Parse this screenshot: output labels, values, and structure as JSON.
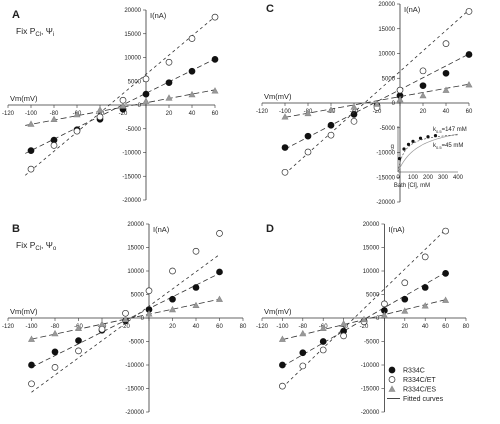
{
  "chart_data": [
    {
      "type": "scatter",
      "panel_label": "A",
      "subtitle": "Fix P",
      "subtitle_sub": "Cl",
      "subtitle_tail": ", Ψ",
      "subtitle_tail_sub": "i",
      "xlabel": "Vm(mV)",
      "ylabel": "I(nA)",
      "xlim": [
        -120,
        60
      ],
      "ylim": [
        -20000,
        20000
      ],
      "xticks": [
        "-120",
        "-100",
        "-80",
        "-60",
        "-40",
        "-20",
        "0",
        "20",
        "40",
        "60"
      ],
      "yticks": [
        "20000",
        "15000",
        "10000",
        "5000",
        "0",
        "-5000",
        "-10000",
        "-15000",
        "-20000"
      ],
      "series": [
        {
          "key": "R334C",
          "x": [
            -100,
            -80,
            -60,
            -40,
            -20,
            0,
            20,
            40,
            60
          ],
          "y": [
            -9600,
            -7400,
            -5200,
            -3000,
            -900,
            2300,
            4700,
            7100,
            9600
          ],
          "fit": {
            "x": [
              -105,
              60
            ],
            "y": [
              -10200,
              9700
            ]
          }
        },
        {
          "key": "R334C/ET",
          "x": [
            -100,
            -80,
            -60,
            -40,
            -20,
            0,
            20,
            40,
            60
          ],
          "y": [
            -13500,
            -8500,
            -5500,
            -2500,
            1000,
            5500,
            9000,
            14000,
            18500
          ],
          "fit": {
            "x": [
              -105,
              60
            ],
            "y": [
              -14800,
              18600
            ]
          }
        },
        {
          "key": "R334C/ES",
          "x": [
            -100,
            -80,
            -60,
            -40,
            -20,
            0,
            20,
            40,
            60
          ],
          "y": [
            -4000,
            -3000,
            -2000,
            -1000,
            -200,
            800,
            1500,
            2200,
            3000
          ],
          "fit": {
            "x": [
              -105,
              60
            ],
            "y": [
              -4300,
              3200
            ]
          }
        }
      ]
    },
    {
      "type": "scatter",
      "panel_label": "C",
      "xlabel": "Vm(mV)",
      "ylabel": "I(nA)",
      "xlim": [
        -120,
        60
      ],
      "ylim": [
        -20000,
        20000
      ],
      "xticks": [
        "-120",
        "-100",
        "-80",
        "-60",
        "-40",
        "-20",
        "0",
        "20",
        "40",
        "60"
      ],
      "yticks": [
        "20000",
        "15000",
        "10000",
        "5000",
        "0",
        "-5000",
        "-10000",
        "-15000",
        "-20000"
      ],
      "series": [
        {
          "key": "R334C",
          "x": [
            -100,
            -80,
            -60,
            -40,
            -20,
            0,
            20,
            40,
            60
          ],
          "y": [
            -9000,
            -6700,
            -4500,
            -2300,
            -500,
            1500,
            3500,
            6000,
            9800
          ],
          "fit": {
            "x": [
              -100,
              60
            ],
            "y": [
              -9300,
              9900
            ]
          }
        },
        {
          "key": "R334C/ET",
          "x": [
            -100,
            -80,
            -60,
            -40,
            -20,
            0,
            20,
            40,
            60
          ],
          "y": [
            -14000,
            -9900,
            -6500,
            -3700,
            -900,
            2600,
            6500,
            12000,
            18500
          ],
          "fit": {
            "x": [
              -100,
              60
            ],
            "y": [
              -14300,
              18800
            ]
          }
        },
        {
          "key": "R334C/ES",
          "x": [
            -100,
            -80,
            -60,
            -40,
            -20,
            0,
            20,
            40,
            60
          ],
          "y": [
            -2800,
            -2100,
            -1400,
            -800,
            -200,
            700,
            1500,
            2600,
            3700
          ],
          "fit": {
            "x": [
              -100,
              60
            ],
            "y": [
              -2900,
              3800
            ]
          }
        }
      ],
      "inset": {
        "xlabel": "Bath [Cl], mM",
        "ylabel": "g",
        "xticks": [
          "0",
          "100",
          "200",
          "300",
          "400"
        ],
        "xlim": [
          0,
          400
        ],
        "ylim": [
          0,
          1.2
        ],
        "x": [
          10,
          40,
          70,
          100,
          150,
          200,
          250
        ],
        "y": [
          0.35,
          0.6,
          0.72,
          0.8,
          0.88,
          0.92,
          0.95
        ],
        "label_high": "k",
        "label_high_sub": "0.5",
        "label_high_value": "=147 mM",
        "label_low": "k",
        "label_low_sub": "0.5",
        "label_low_value": "=45 mM"
      }
    },
    {
      "type": "scatter",
      "panel_label": "B",
      "subtitle": "Fix P",
      "subtitle_sub": "Cl",
      "subtitle_tail": ", Ψ",
      "subtitle_tail_sub": "o",
      "xlabel": "Vm(mV)",
      "ylabel": "I(nA)",
      "xlim": [
        -120,
        80
      ],
      "ylim": [
        -20000,
        20000
      ],
      "xticks": [
        "-120",
        "-100",
        "-80",
        "-60",
        "-40",
        "-20",
        "0",
        "20",
        "40",
        "60",
        "80"
      ],
      "yticks": [
        "20000",
        "15000",
        "10000",
        "5000",
        "0",
        "-5000",
        "-10000",
        "-15000",
        "-20000"
      ],
      "series": [
        {
          "key": "R334C",
          "x": [
            -100,
            -80,
            -60,
            -40,
            -20,
            0,
            20,
            40,
            60
          ],
          "y": [
            -10000,
            -7200,
            -4800,
            -2600,
            -600,
            1800,
            4000,
            6500,
            9800
          ],
          "fit": {
            "x": [
              -100,
              60
            ],
            "y": [
              -10500,
              9500
            ]
          }
        },
        {
          "key": "R334C/ET",
          "x": [
            -100,
            -80,
            -60,
            -40,
            -20,
            0,
            20,
            40,
            60
          ],
          "y": [
            -14000,
            -10500,
            -7000,
            -2400,
            1000,
            5800,
            10000,
            14200,
            18000
          ],
          "fit": {
            "x": [
              -100,
              60
            ],
            "y": [
              -15800,
              13500
            ]
          }
        },
        {
          "key": "R334C/ES",
          "x": [
            -100,
            -80,
            -60,
            -40,
            -20,
            0,
            20,
            40,
            60
          ],
          "y": [
            -4500,
            -3300,
            -2200,
            -1300,
            -300,
            900,
            1800,
            2700,
            4000
          ],
          "fit": {
            "x": [
              -100,
              60
            ],
            "y": [
              -4500,
              4000
            ]
          }
        }
      ]
    },
    {
      "type": "scatter",
      "panel_label": "D",
      "xlabel": "Vm(mV)",
      "ylabel": "I(nA)",
      "xlim": [
        -120,
        80
      ],
      "ylim": [
        -20000,
        20000
      ],
      "xticks": [
        "-120",
        "-100",
        "-80",
        "-60",
        "-40",
        "-20",
        "0",
        "20",
        "40",
        "60",
        "80"
      ],
      "yticks": [
        "20000",
        "15000",
        "10000",
        "5000",
        "0",
        "-5000",
        "-10000",
        "-15000",
        "-20000"
      ],
      "series": [
        {
          "key": "R334C",
          "x": [
            -100,
            -80,
            -60,
            -40,
            -20,
            0,
            20,
            40,
            60
          ],
          "y": [
            -10000,
            -7400,
            -5000,
            -2800,
            -700,
            1600,
            4000,
            6500,
            9500
          ],
          "fit": {
            "x": [
              -100,
              60
            ],
            "y": [
              -10300,
              9700
            ]
          }
        },
        {
          "key": "R334C/ET",
          "x": [
            -100,
            -80,
            -60,
            -40,
            -20,
            0,
            20,
            40,
            60
          ],
          "y": [
            -14500,
            -10200,
            -6800,
            -3800,
            -800,
            3000,
            7500,
            13000,
            18500
          ],
          "fit": {
            "x": [
              -100,
              60
            ],
            "y": [
              -14800,
              18800
            ]
          }
        },
        {
          "key": "R334C/ES",
          "x": [
            -100,
            -80,
            -60,
            -40,
            -20,
            0,
            20,
            40,
            60
          ],
          "y": [
            -4500,
            -3300,
            -2200,
            -1200,
            -300,
            600,
            1500,
            2600,
            3800
          ],
          "fit": {
            "x": [
              -100,
              60
            ],
            "y": [
              -4600,
              3900
            ]
          }
        }
      ]
    }
  ],
  "legend": [
    {
      "key": "R334C",
      "label": "R334C",
      "marker": "filled-circle"
    },
    {
      "key": "R334C/ET",
      "label": "R334C/ET",
      "marker": "open-circle"
    },
    {
      "key": "R334C/ES",
      "label": "R334C/ES",
      "marker": "triangle"
    },
    {
      "key": "fit",
      "label": "Fitted curves",
      "marker": "line"
    }
  ],
  "styles": {
    "R334C": {
      "marker": "filled-circle",
      "fill": "#111111",
      "stroke": "#111111",
      "dash": "5,3"
    },
    "R334C/ET": {
      "marker": "open-circle",
      "fill": "#ffffff",
      "stroke": "#333333",
      "dash": "3,3"
    },
    "R334C/ES": {
      "marker": "triangle",
      "fill": "#999999",
      "stroke": "#888888",
      "dash": "6,3"
    },
    "axis_color": "#333333"
  }
}
